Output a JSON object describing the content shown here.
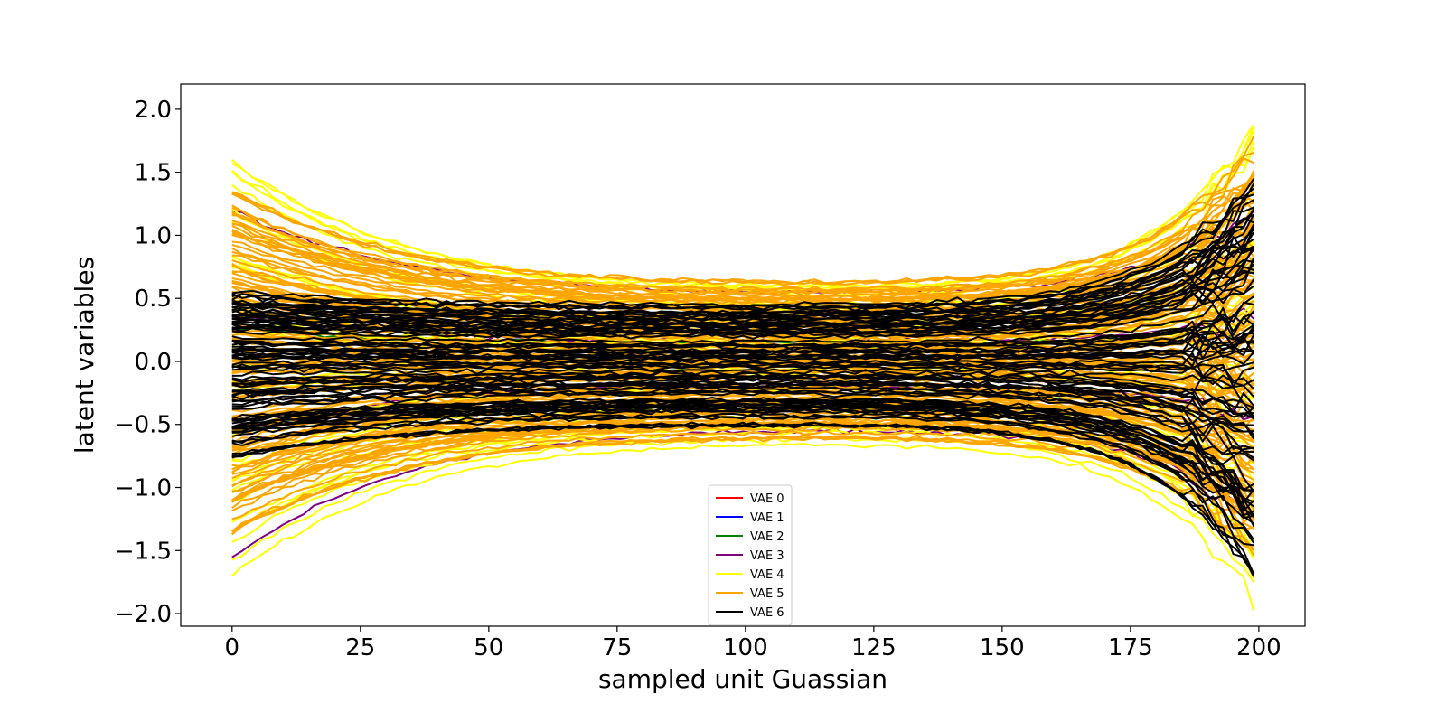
{
  "chart_data": {
    "type": "line",
    "title": "",
    "xlabel": "sampled unit Guassian",
    "ylabel": "latent variables",
    "xlim": [
      -10,
      209
    ],
    "ylim": [
      -2.1,
      2.2
    ],
    "x_ticks": [
      0,
      25,
      50,
      75,
      100,
      125,
      150,
      175,
      200
    ],
    "y_ticks": [
      2.0,
      1.5,
      1.0,
      0.5,
      0.0,
      -0.5,
      -1.0,
      -1.5,
      -2.0
    ],
    "y_tick_labels": [
      "2.0",
      "1.5",
      "1.0",
      "0.5",
      "0.0",
      "−0.5",
      "−1.0",
      "−1.5",
      "−2.0"
    ],
    "x_range": [
      0,
      199
    ],
    "legend_position": "bottom-center",
    "series": [
      {
        "name": "VAE 0",
        "color": "#ff0000",
        "start_span": [
          -1.0,
          1.0
        ],
        "mid_span": [
          -0.45,
          0.45
        ],
        "end_span": [
          -1.0,
          1.0
        ],
        "count": 0
      },
      {
        "name": "VAE 1",
        "color": "#0000ff",
        "start_span": [
          -1.0,
          1.0
        ],
        "mid_span": [
          -0.45,
          0.45
        ],
        "end_span": [
          -1.0,
          1.0
        ],
        "count": 0
      },
      {
        "name": "VAE 2",
        "color": "#008000",
        "start_span": [
          -1.0,
          1.0
        ],
        "mid_span": [
          -0.6,
          0.55
        ],
        "end_span": [
          -1.0,
          1.0
        ],
        "count": 1
      },
      {
        "name": "VAE 3",
        "color": "#800080",
        "start_span": [
          -1.56,
          1.2
        ],
        "mid_span": [
          -0.55,
          0.55
        ],
        "end_span": [
          -1.2,
          1.2
        ],
        "count": 4
      },
      {
        "name": "VAE 4",
        "color": "#ffff00",
        "start_span": [
          -1.7,
          1.75
        ],
        "mid_span": [
          -0.65,
          0.65
        ],
        "end_span": [
          -1.9,
          2.02
        ],
        "count": 40
      },
      {
        "name": "VAE 5",
        "color": "#ffa500",
        "start_span": [
          -1.35,
          1.35
        ],
        "mid_span": [
          -0.6,
          0.62
        ],
        "end_span": [
          -1.5,
          1.7
        ],
        "count": 120
      },
      {
        "name": "VAE 6",
        "color": "#000000",
        "start_span": [
          -0.75,
          0.55
        ],
        "mid_span": [
          -0.5,
          0.45
        ],
        "end_span": [
          -1.67,
          1.42
        ],
        "count": 90
      }
    ]
  }
}
